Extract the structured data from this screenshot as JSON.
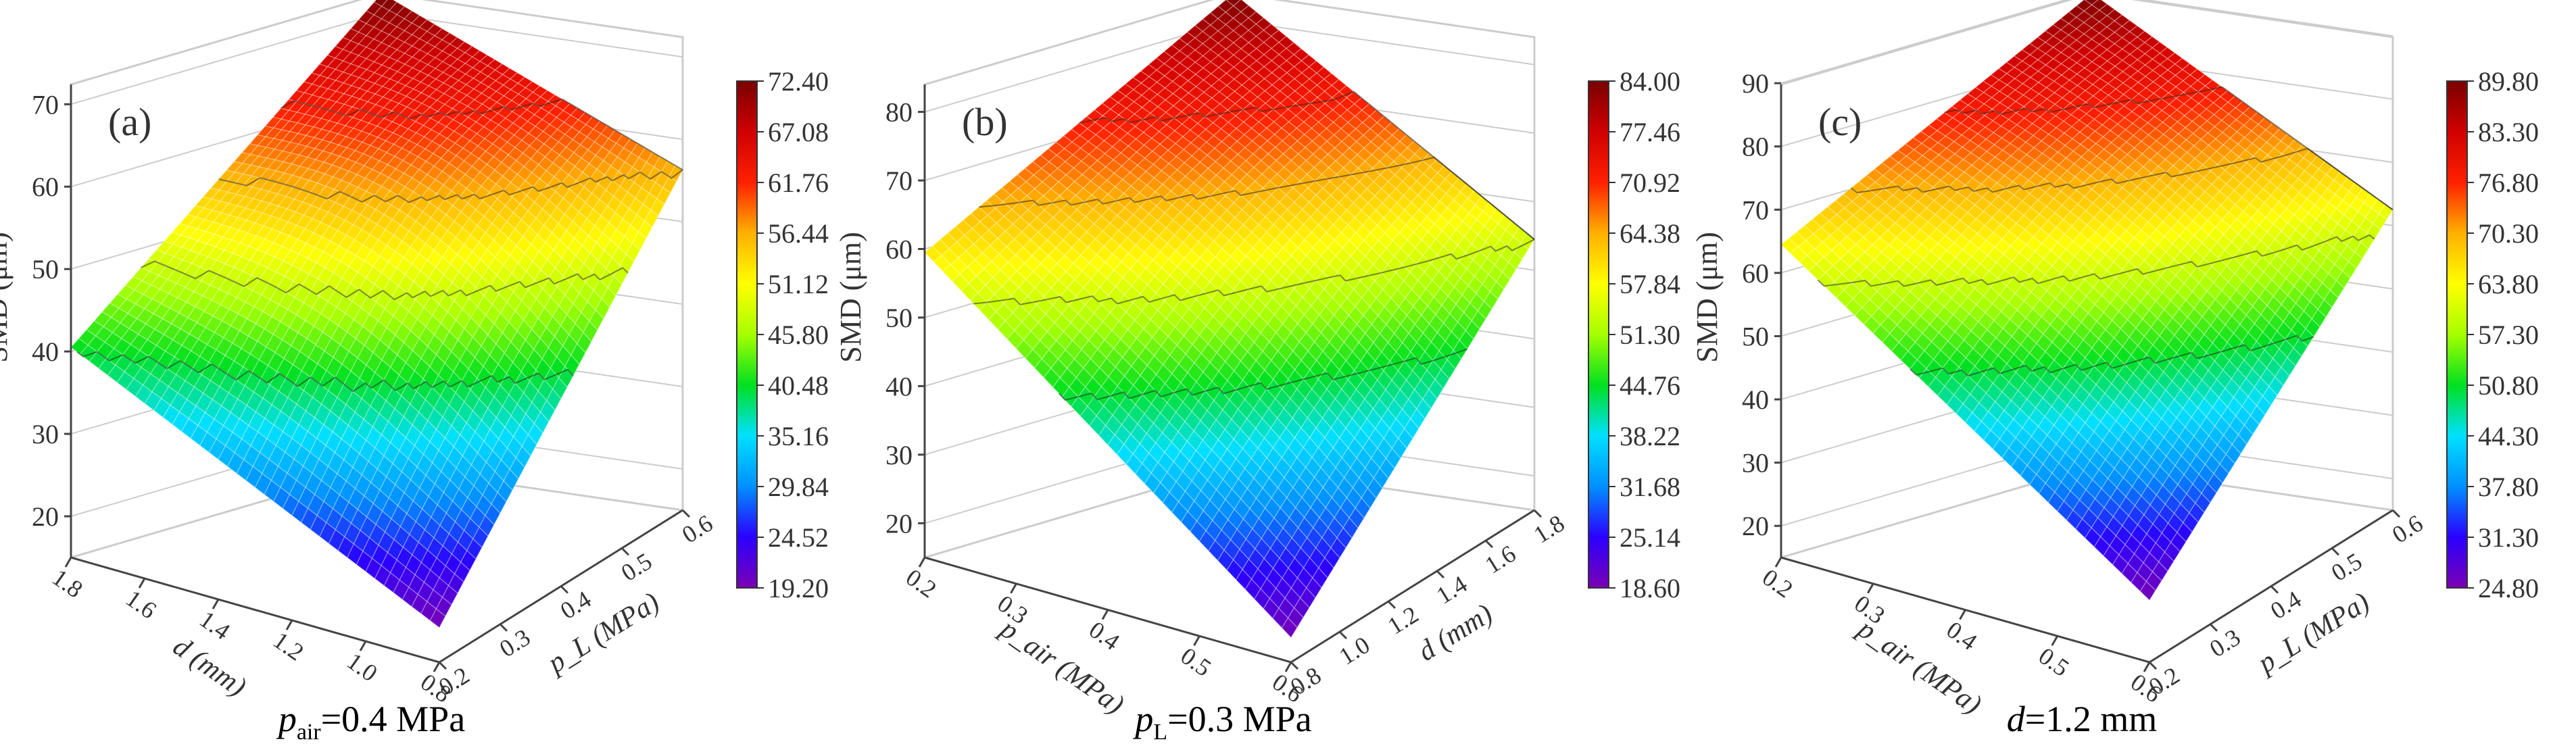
{
  "figure": {
    "colormap": [
      "#7a00b4",
      "#2b00ff",
      "#0090ff",
      "#00e0ff",
      "#00e020",
      "#a6ff00",
      "#ffff00",
      "#ffb000",
      "#ff2000",
      "#d00000",
      "#7a0000"
    ],
    "grid_color": "#cccccc"
  },
  "chart_data": [
    {
      "type": "surface3d",
      "panel_label": "(a)",
      "caption_main": "p",
      "caption_sub": "air",
      "caption_rest": "=0.4 MPa",
      "zlabel": "SMD (μm)",
      "left_axis": {
        "label": "d (mm)",
        "ticks": [
          "1.8",
          "1.6",
          "1.4",
          "1.2",
          "1.0",
          "0.8"
        ]
      },
      "right_axis": {
        "label": "p_L (MPa)",
        "ticks": [
          "0.2",
          "0.3",
          "0.4",
          "0.5",
          "0.6"
        ]
      },
      "z_ticks": [
        "20",
        "30",
        "40",
        "50",
        "60",
        "70"
      ],
      "zlim": [
        15,
        72.4
      ],
      "corners": {
        "left": 40.5,
        "front": 19.2,
        "right": 56.3,
        "back": 72.4
      },
      "colorbar": {
        "min": 19.2,
        "max": 72.4,
        "labels": [
          "72.40",
          "67.08",
          "61.76",
          "56.44",
          "51.12",
          "45.80",
          "40.48",
          "35.16",
          "29.84",
          "24.52",
          "19.20"
        ]
      }
    },
    {
      "type": "surface3d",
      "panel_label": "(b)",
      "caption_main": "p",
      "caption_sub": "L",
      "caption_rest": "=0.3 MPa",
      "zlabel": "SMD (μm)",
      "left_axis": {
        "label": "p_air (MPa)",
        "ticks": [
          "0.2",
          "0.3",
          "0.4",
          "0.5",
          "0.6"
        ]
      },
      "right_axis": {
        "label": "d (mm)",
        "ticks": [
          "0.8",
          "1.0",
          "1.2",
          "1.4",
          "1.6",
          "1.8"
        ]
      },
      "z_ticks": [
        "20",
        "30",
        "40",
        "50",
        "60",
        "70",
        "80"
      ],
      "zlim": [
        15,
        84
      ],
      "corners": {
        "left": 59.5,
        "front": 18.6,
        "right": 54.5,
        "back": 84.0
      },
      "colorbar": {
        "min": 18.6,
        "max": 84.0,
        "labels": [
          "84.00",
          "77.46",
          "70.92",
          "64.38",
          "57.84",
          "51.30",
          "44.76",
          "38.22",
          "31.68",
          "25.14",
          "18.60"
        ]
      }
    },
    {
      "type": "surface3d",
      "panel_label": "(c)",
      "caption_main": "d",
      "caption_sub": "",
      "caption_rest": "=1.2 mm",
      "zlabel": "SMD (μm)",
      "left_axis": {
        "label": "p_air (MPa)",
        "ticks": [
          "0.2",
          "0.3",
          "0.4",
          "0.5",
          "0.6"
        ]
      },
      "right_axis": {
        "label": "p_L (MPa)",
        "ticks": [
          "0.2",
          "0.3",
          "0.4",
          "0.5",
          "0.6"
        ]
      },
      "z_ticks": [
        "20",
        "30",
        "40",
        "50",
        "60",
        "70",
        "80",
        "90"
      ],
      "zlim": [
        15,
        89.8
      ],
      "corners": {
        "left": 64.5,
        "front": 24.8,
        "right": 62.5,
        "back": 89.8
      },
      "colorbar": {
        "min": 24.8,
        "max": 89.8,
        "labels": [
          "89.80",
          "83.30",
          "76.80",
          "70.30",
          "63.80",
          "57.30",
          "50.80",
          "44.30",
          "37.80",
          "31.30",
          "24.80"
        ]
      }
    }
  ]
}
